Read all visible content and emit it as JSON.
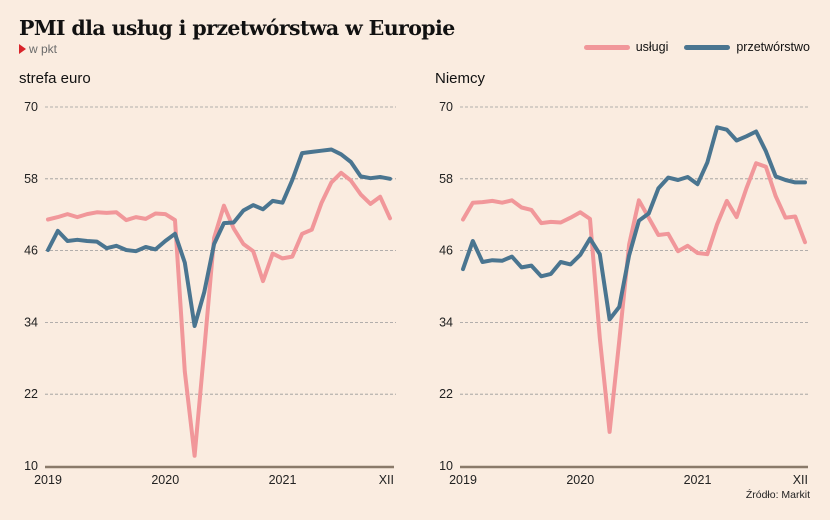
{
  "title": "PMI dla usług i przetwórstwa w Europie",
  "subtitle": "w pkt",
  "source": "Źródło: Markit",
  "legend": [
    {
      "label": "usługi",
      "color": "#f1979a"
    },
    {
      "label": "przetwórstwo",
      "color": "#4a7590"
    }
  ],
  "colors": {
    "services": "#f1979a",
    "manufacturing": "#4a7590",
    "background": "#faece0",
    "axis": "#8a7a6a",
    "grid": "#9a9a9a"
  },
  "chart_data": [
    {
      "type": "line",
      "title": "strefa euro",
      "xlabel": "",
      "ylabel": "",
      "ylim": [
        10,
        70
      ],
      "yticks": [
        70,
        58,
        46,
        34,
        22,
        10
      ],
      "xticks": [
        "2019",
        "2020",
        "2021",
        "XII"
      ],
      "x": [
        "2019-01",
        "2019-02",
        "2019-03",
        "2019-04",
        "2019-05",
        "2019-06",
        "2019-07",
        "2019-08",
        "2019-09",
        "2019-10",
        "2019-11",
        "2019-12",
        "2020-01",
        "2020-02",
        "2020-03",
        "2020-04",
        "2020-05",
        "2020-06",
        "2020-07",
        "2020-08",
        "2020-09",
        "2020-10",
        "2020-11",
        "2020-12",
        "2021-01",
        "2021-02",
        "2021-03",
        "2021-04",
        "2021-05",
        "2021-06",
        "2021-07",
        "2021-08",
        "2021-09",
        "2021-10",
        "2021-11",
        "2021-12"
      ],
      "grid": true,
      "series": [
        {
          "name": "usługi",
          "values": [
            51.2,
            51.6,
            52.1,
            51.6,
            52.1,
            52.4,
            52.3,
            52.4,
            51.1,
            51.6,
            51.3,
            52.2,
            52.1,
            51.1,
            25.8,
            11.7,
            29.5,
            48.1,
            53.5,
            49.7,
            47.1,
            45.9,
            40.9,
            45.5,
            44.7,
            45.0,
            48.8,
            49.5,
            54.0,
            57.4,
            59.0,
            57.7,
            55.4,
            53.8,
            55.0,
            51.4
          ]
        },
        {
          "name": "przetwórstwo",
          "values": [
            46.1,
            49.3,
            47.6,
            47.8,
            47.6,
            47.5,
            46.4,
            46.8,
            46.1,
            45.9,
            46.6,
            46.2,
            47.6,
            48.8,
            44.0,
            33.4,
            39.1,
            47.1,
            50.6,
            50.7,
            52.7,
            53.6,
            52.9,
            54.3,
            54.0,
            57.8,
            62.3,
            62.5,
            62.7,
            62.9,
            62.1,
            60.8,
            58.4,
            58.1,
            58.3,
            58.0
          ]
        }
      ]
    },
    {
      "type": "line",
      "title": "Niemcy",
      "xlabel": "",
      "ylabel": "",
      "ylim": [
        10,
        70
      ],
      "yticks": [
        70,
        58,
        46,
        34,
        22,
        10
      ],
      "xticks": [
        "2019",
        "2020",
        "2021",
        "XII"
      ],
      "x": [
        "2019-01",
        "2019-02",
        "2019-03",
        "2019-04",
        "2019-05",
        "2019-06",
        "2019-07",
        "2019-08",
        "2019-09",
        "2019-10",
        "2019-11",
        "2019-12",
        "2020-01",
        "2020-02",
        "2020-03",
        "2020-04",
        "2020-05",
        "2020-06",
        "2020-07",
        "2020-08",
        "2020-09",
        "2020-10",
        "2020-11",
        "2020-12",
        "2021-01",
        "2021-02",
        "2021-03",
        "2021-04",
        "2021-05",
        "2021-06",
        "2021-07",
        "2021-08",
        "2021-09",
        "2021-10",
        "2021-11",
        "2021-12"
      ],
      "grid": true,
      "series": [
        {
          "name": "usługi",
          "values": [
            51.2,
            54.0,
            54.1,
            54.3,
            54.0,
            54.4,
            53.2,
            52.8,
            50.6,
            50.8,
            50.7,
            51.5,
            52.4,
            51.3,
            31.4,
            15.7,
            31.0,
            47.0,
            54.4,
            51.5,
            48.6,
            48.8,
            45.9,
            46.8,
            45.6,
            45.4,
            50.4,
            54.3,
            51.6,
            56.4,
            60.6,
            60.0,
            55.1,
            51.5,
            51.7,
            47.4
          ]
        },
        {
          "name": "przetwórstwo",
          "values": [
            42.9,
            47.6,
            44.1,
            44.4,
            44.3,
            45.0,
            43.2,
            43.5,
            41.7,
            42.1,
            44.1,
            43.7,
            45.3,
            48.0,
            45.4,
            34.5,
            36.6,
            45.2,
            51.0,
            52.2,
            56.4,
            58.2,
            57.8,
            58.3,
            57.1,
            60.7,
            66.6,
            66.2,
            64.4,
            65.1,
            65.9,
            62.6,
            58.4,
            57.8,
            57.4,
            57.4
          ]
        }
      ]
    }
  ]
}
